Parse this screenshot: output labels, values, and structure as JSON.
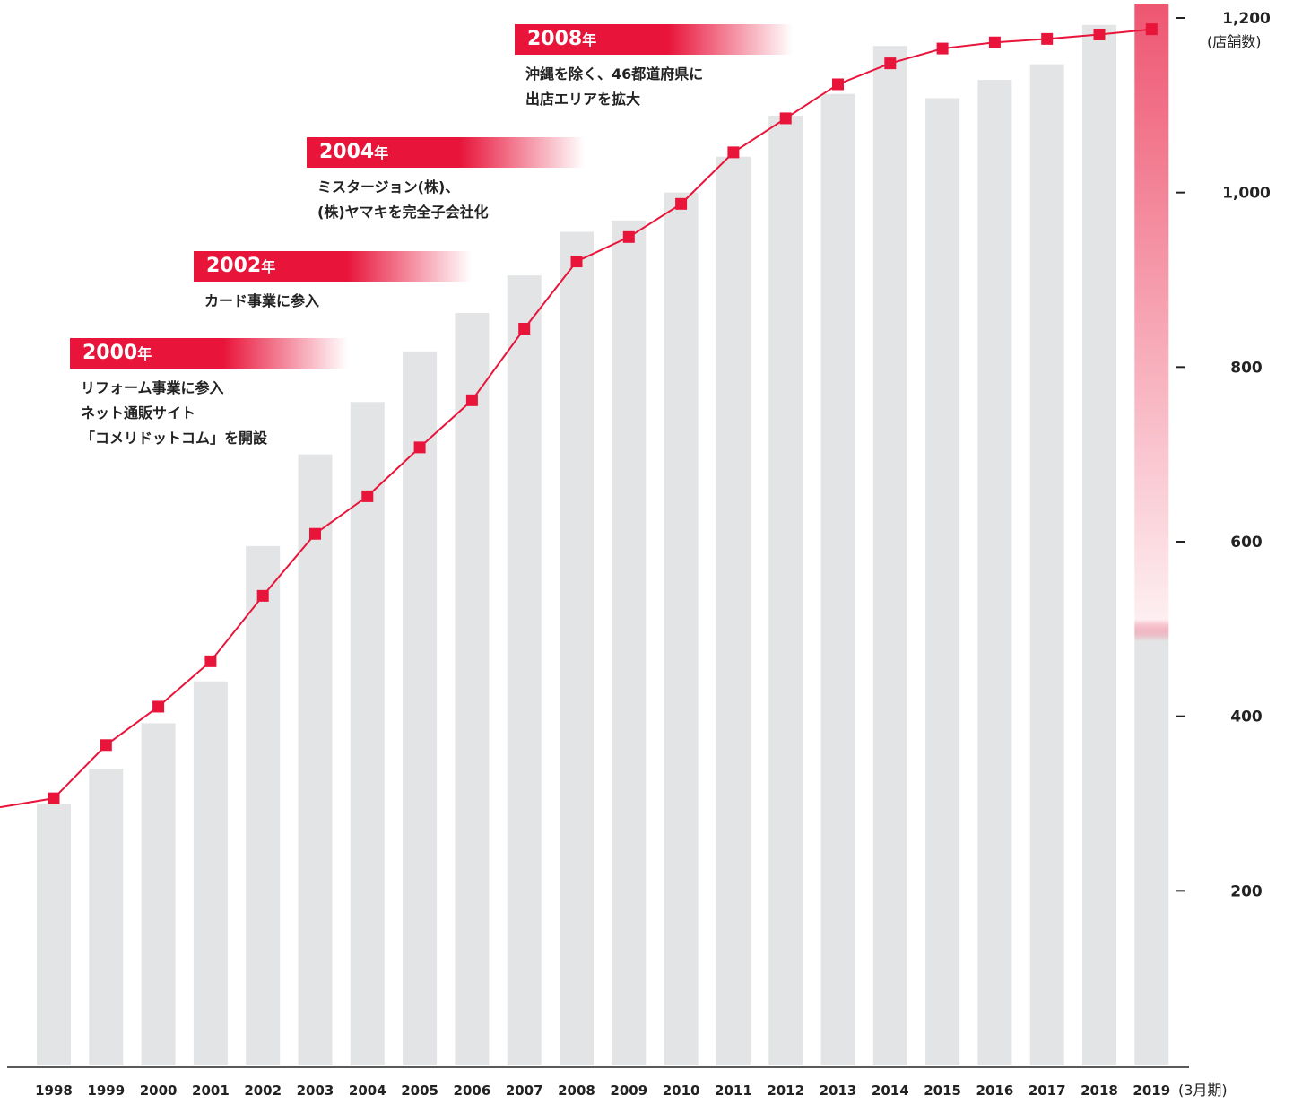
{
  "chart_data": {
    "type": "bar",
    "categories": [
      "1998",
      "1999",
      "2000",
      "2001",
      "2002",
      "2003",
      "2004",
      "2005",
      "2006",
      "2007",
      "2008",
      "2009",
      "2010",
      "2011",
      "2012",
      "2013",
      "2014",
      "2015",
      "2016",
      "2017",
      "2018",
      "2019"
    ],
    "x_unit": "(3月期)",
    "y_unit": "(店舗数)",
    "yticks": [
      "200",
      "400",
      "600",
      "800",
      "1,000",
      "1,200"
    ],
    "ylim": [
      0,
      1200
    ],
    "series": [
      {
        "type": "bar",
        "values": [
          300,
          340,
          392,
          440,
          595,
          700,
          760,
          818,
          862,
          905,
          955,
          968,
          1000,
          1041,
          1088,
          1113,
          1168,
          1108,
          1129,
          1147,
          1192,
          1200
        ]
      },
      {
        "type": "line",
        "values": [
          306,
          367,
          411,
          463,
          538,
          609,
          652,
          708,
          762,
          844,
          921,
          949,
          987,
          1046,
          1085,
          1124,
          1148,
          1165,
          1172,
          1176,
          1181,
          1187
        ]
      }
    ],
    "line_color": "#e8143a",
    "bar_color": "#e3e4e5",
    "highlight_color": "#e8143a",
    "grid": false
  },
  "annotations": [
    {
      "year": "2000",
      "suffix": "年",
      "text": "リフォーム事業に参入\nネット通販サイト\n「コメリドットコム」を開設"
    },
    {
      "year": "2002",
      "suffix": "年",
      "text": "カード事業に参入"
    },
    {
      "year": "2004",
      "suffix": "年",
      "text": "ミスタージョン(株)、\n(株)ヤマキを完全子会社化"
    },
    {
      "year": "2008",
      "suffix": "年",
      "text": "沖縄を除く、46都道府県に\n出店エリアを拡大"
    }
  ]
}
